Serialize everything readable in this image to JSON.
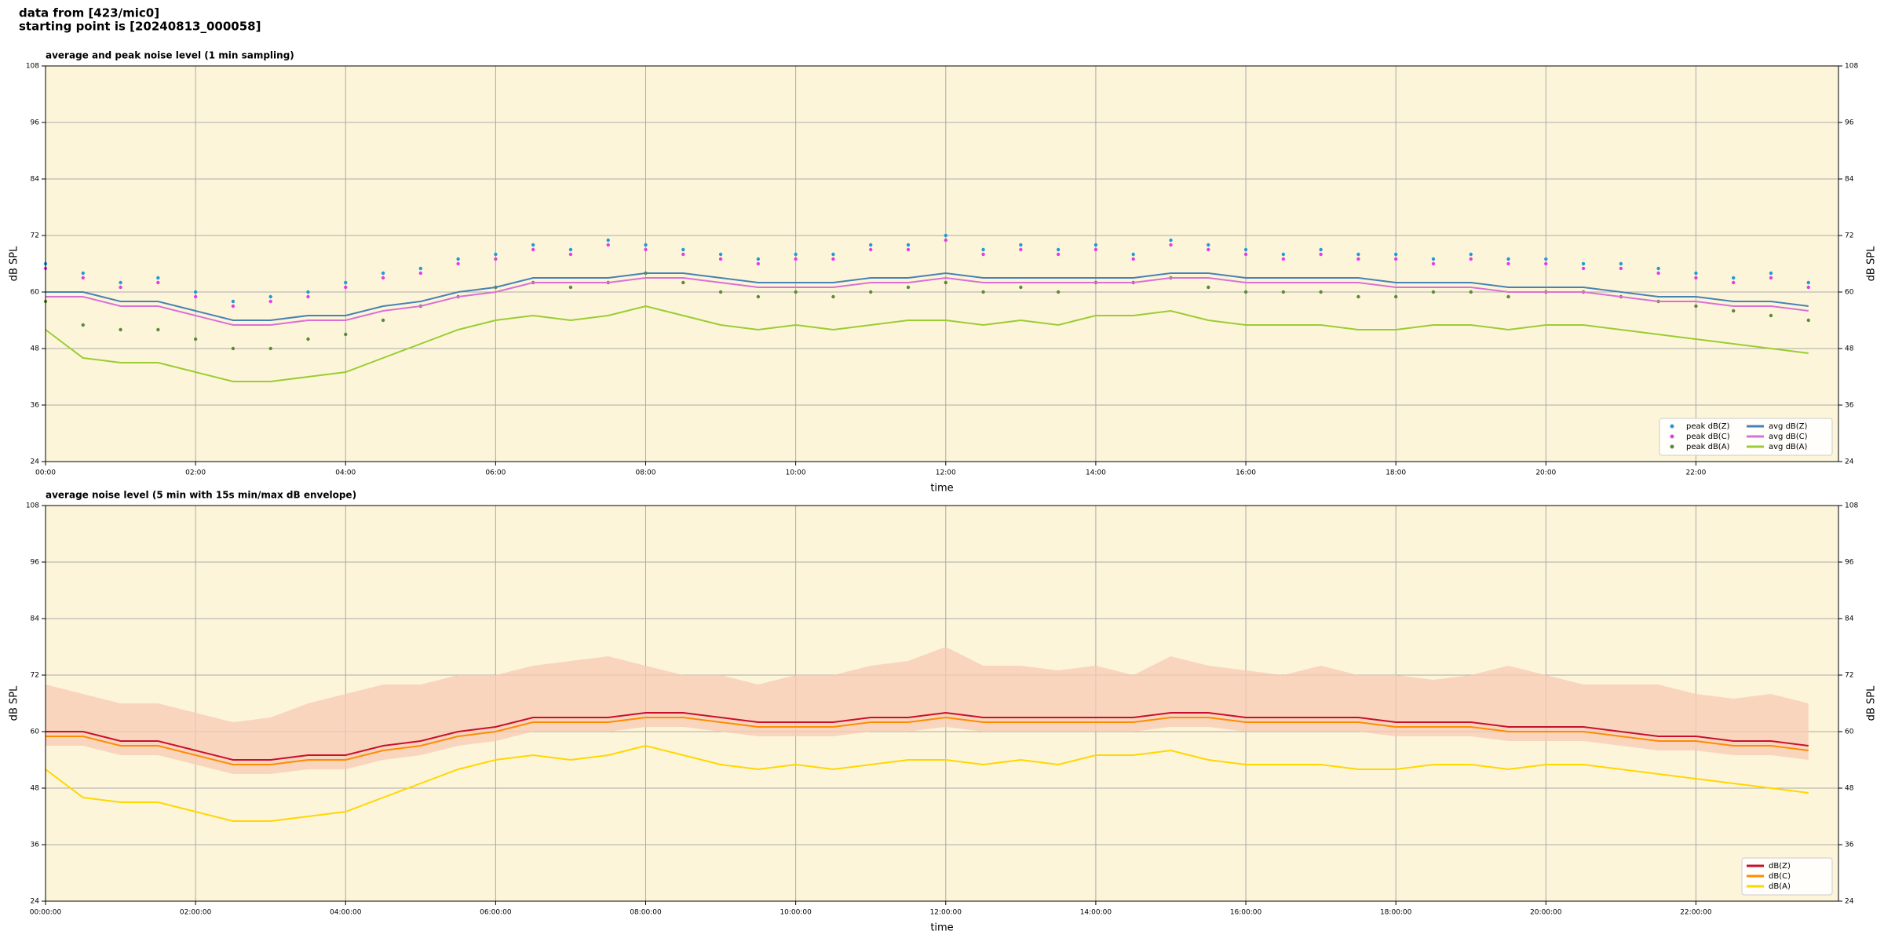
{
  "header": {
    "line1": "data from [423/mic0]",
    "line2": "starting point is [20240813_000058]"
  },
  "chart_data": [
    {
      "type": "line",
      "title": "average and peak noise level (1 min sampling)",
      "x_label": "time",
      "y_label": "dB SPL",
      "y2_label": "dB SPL",
      "x": [
        0,
        0.5,
        1,
        1.5,
        2,
        2.5,
        3,
        3.5,
        4,
        4.5,
        5,
        5.5,
        6,
        6.5,
        7,
        7.5,
        8,
        8.5,
        9,
        9.5,
        10,
        10.5,
        11,
        11.5,
        12,
        12.5,
        13,
        13.5,
        14,
        14.5,
        15,
        15.5,
        16,
        16.5,
        17,
        17.5,
        18,
        18.5,
        19,
        19.5,
        20,
        20.5,
        21,
        21.5,
        22,
        22.5,
        23,
        23.5
      ],
      "xlim": [
        0,
        23.9
      ],
      "xticks": [
        {
          "value": 0,
          "label": "00:00"
        },
        {
          "value": 2,
          "label": "02:00"
        },
        {
          "value": 4,
          "label": "04:00"
        },
        {
          "value": 6,
          "label": "06:00"
        },
        {
          "value": 8,
          "label": "08:00"
        },
        {
          "value": 10,
          "label": "10:00"
        },
        {
          "value": 12,
          "label": "12:00"
        },
        {
          "value": 14,
          "label": "14:00"
        },
        {
          "value": 16,
          "label": "16:00"
        },
        {
          "value": 18,
          "label": "18:00"
        },
        {
          "value": 20,
          "label": "20:00"
        },
        {
          "value": 22,
          "label": "22:00"
        }
      ],
      "ylim": [
        24,
        108
      ],
      "yticks": [
        24,
        36,
        48,
        60,
        72,
        84,
        96,
        108
      ],
      "grid": true,
      "legend": "lower right",
      "legend_columns": 2,
      "background": "#fdf5d9",
      "series": [
        {
          "name": "peak dB(Z)",
          "color": "#1f9bd6",
          "kind": "scatter",
          "values": [
            66,
            64,
            62,
            63,
            60,
            58,
            59,
            60,
            62,
            64,
            65,
            67,
            68,
            70,
            69,
            71,
            70,
            69,
            68,
            67,
            68,
            68,
            70,
            70,
            72,
            69,
            70,
            69,
            70,
            68,
            71,
            70,
            69,
            68,
            69,
            68,
            68,
            67,
            68,
            67,
            67,
            66,
            66,
            65,
            64,
            63,
            64,
            62
          ]
        },
        {
          "name": "peak dB(C)",
          "color": "#e23ee8",
          "kind": "scatter",
          "values": [
            65,
            63,
            61,
            62,
            59,
            57,
            58,
            59,
            61,
            63,
            64,
            66,
            67,
            69,
            68,
            70,
            69,
            68,
            67,
            66,
            67,
            67,
            69,
            69,
            71,
            68,
            69,
            68,
            69,
            67,
            70,
            69,
            68,
            67,
            68,
            67,
            67,
            66,
            67,
            66,
            66,
            65,
            65,
            64,
            63,
            62,
            63,
            61
          ]
        },
        {
          "name": "peak dB(A)",
          "color": "#5a8a3a",
          "kind": "scatter",
          "values": [
            58,
            53,
            52,
            52,
            50,
            48,
            48,
            50,
            51,
            54,
            57,
            59,
            61,
            62,
            61,
            62,
            64,
            62,
            60,
            59,
            60,
            59,
            60,
            61,
            62,
            60,
            61,
            60,
            62,
            62,
            63,
            61,
            60,
            60,
            60,
            59,
            59,
            60,
            60,
            59,
            60,
            60,
            59,
            58,
            57,
            56,
            55,
            54
          ]
        },
        {
          "name": "avg dB(Z)",
          "color": "#4682b4",
          "kind": "line",
          "values": [
            60,
            60,
            58,
            58,
            56,
            54,
            54,
            55,
            55,
            57,
            58,
            60,
            61,
            63,
            63,
            63,
            64,
            64,
            63,
            62,
            62,
            62,
            63,
            63,
            64,
            63,
            63,
            63,
            63,
            63,
            64,
            64,
            63,
            63,
            63,
            63,
            62,
            62,
            62,
            61,
            61,
            61,
            60,
            59,
            59,
            58,
            58,
            57
          ]
        },
        {
          "name": "avg dB(C)",
          "color": "#da70d6",
          "kind": "line",
          "values": [
            59,
            59,
            57,
            57,
            55,
            53,
            53,
            54,
            54,
            56,
            57,
            59,
            60,
            62,
            62,
            62,
            63,
            63,
            62,
            61,
            61,
            61,
            62,
            62,
            63,
            62,
            62,
            62,
            62,
            62,
            63,
            63,
            62,
            62,
            62,
            62,
            61,
            61,
            61,
            60,
            60,
            60,
            59,
            58,
            58,
            57,
            57,
            56
          ]
        },
        {
          "name": "avg dB(A)",
          "color": "#9acd32",
          "kind": "line",
          "values": [
            52,
            46,
            45,
            45,
            43,
            41,
            41,
            42,
            43,
            46,
            49,
            52,
            54,
            55,
            54,
            55,
            57,
            55,
            53,
            52,
            53,
            52,
            53,
            54,
            54,
            53,
            54,
            53,
            55,
            55,
            56,
            54,
            53,
            53,
            53,
            52,
            52,
            53,
            53,
            52,
            53,
            53,
            52,
            51,
            50,
            49,
            48,
            47
          ]
        }
      ]
    },
    {
      "type": "line",
      "title": "average noise level (5 min with 15s min/max dB envelope)",
      "x_label": "time",
      "y_label": "dB SPL",
      "y2_label": "dB SPL",
      "x": [
        0,
        0.5,
        1,
        1.5,
        2,
        2.5,
        3,
        3.5,
        4,
        4.5,
        5,
        5.5,
        6,
        6.5,
        7,
        7.5,
        8,
        8.5,
        9,
        9.5,
        10,
        10.5,
        11,
        11.5,
        12,
        12.5,
        13,
        13.5,
        14,
        14.5,
        15,
        15.5,
        16,
        16.5,
        17,
        17.5,
        18,
        18.5,
        19,
        19.5,
        20,
        20.5,
        21,
        21.5,
        22,
        22.5,
        23,
        23.5
      ],
      "xlim": [
        0,
        23.9
      ],
      "xticks": [
        {
          "value": 0,
          "label": "00:00:00"
        },
        {
          "value": 2,
          "label": "02:00:00"
        },
        {
          "value": 4,
          "label": "04:00:00"
        },
        {
          "value": 6,
          "label": "06:00:00"
        },
        {
          "value": 8,
          "label": "08:00:00"
        },
        {
          "value": 10,
          "label": "10:00:00"
        },
        {
          "value": 12,
          "label": "12:00:00"
        },
        {
          "value": 14,
          "label": "14:00:00"
        },
        {
          "value": 16,
          "label": "16:00:00"
        },
        {
          "value": 18,
          "label": "18:00:00"
        },
        {
          "value": 20,
          "label": "20:00:00"
        },
        {
          "value": 22,
          "label": "22:00:00"
        }
      ],
      "ylim": [
        24,
        108
      ],
      "yticks": [
        24,
        36,
        48,
        60,
        72,
        84,
        96,
        108
      ],
      "grid": true,
      "legend": "lower right",
      "legend_columns": 1,
      "background": "#fdf5d9",
      "envelope": {
        "color": "#f7c9b4",
        "lower": [
          57,
          57,
          55,
          55,
          53,
          51,
          51,
          52,
          52,
          54,
          55,
          57,
          58,
          60,
          60,
          60,
          61,
          61,
          60,
          59,
          59,
          59,
          60,
          60,
          61,
          60,
          60,
          60,
          60,
          60,
          61,
          61,
          60,
          60,
          60,
          60,
          59,
          59,
          59,
          58,
          58,
          58,
          57,
          56,
          56,
          55,
          55,
          54
        ],
        "upper": [
          70,
          68,
          66,
          66,
          64,
          62,
          63,
          66,
          68,
          70,
          70,
          72,
          72,
          74,
          75,
          76,
          74,
          72,
          72,
          70,
          72,
          72,
          74,
          75,
          78,
          74,
          74,
          73,
          74,
          72,
          76,
          74,
          73,
          72,
          74,
          72,
          72,
          71,
          72,
          74,
          72,
          70,
          70,
          70,
          68,
          67,
          68,
          66
        ]
      },
      "series": [
        {
          "name": "dB(Z)",
          "color": "#c8102e",
          "kind": "line",
          "values": [
            60,
            60,
            58,
            58,
            56,
            54,
            54,
            55,
            55,
            57,
            58,
            60,
            61,
            63,
            63,
            63,
            64,
            64,
            63,
            62,
            62,
            62,
            63,
            63,
            64,
            63,
            63,
            63,
            63,
            63,
            64,
            64,
            63,
            63,
            63,
            63,
            62,
            62,
            62,
            61,
            61,
            61,
            60,
            59,
            59,
            58,
            58,
            57
          ]
        },
        {
          "name": "dB(C)",
          "color": "#ff8c00",
          "kind": "line",
          "values": [
            59,
            59,
            57,
            57,
            55,
            53,
            53,
            54,
            54,
            56,
            57,
            59,
            60,
            62,
            62,
            62,
            63,
            63,
            62,
            61,
            61,
            61,
            62,
            62,
            63,
            62,
            62,
            62,
            62,
            62,
            63,
            63,
            62,
            62,
            62,
            62,
            61,
            61,
            61,
            60,
            60,
            60,
            59,
            58,
            58,
            57,
            57,
            56
          ]
        },
        {
          "name": "dB(A)",
          "color": "#ffd700",
          "kind": "line",
          "values": [
            52,
            46,
            45,
            45,
            43,
            41,
            41,
            42,
            43,
            46,
            49,
            52,
            54,
            55,
            54,
            55,
            57,
            55,
            53,
            52,
            53,
            52,
            53,
            54,
            54,
            53,
            54,
            53,
            55,
            55,
            56,
            54,
            53,
            53,
            53,
            52,
            52,
            53,
            53,
            52,
            53,
            53,
            52,
            51,
            50,
            49,
            48,
            47
          ]
        }
      ]
    }
  ]
}
